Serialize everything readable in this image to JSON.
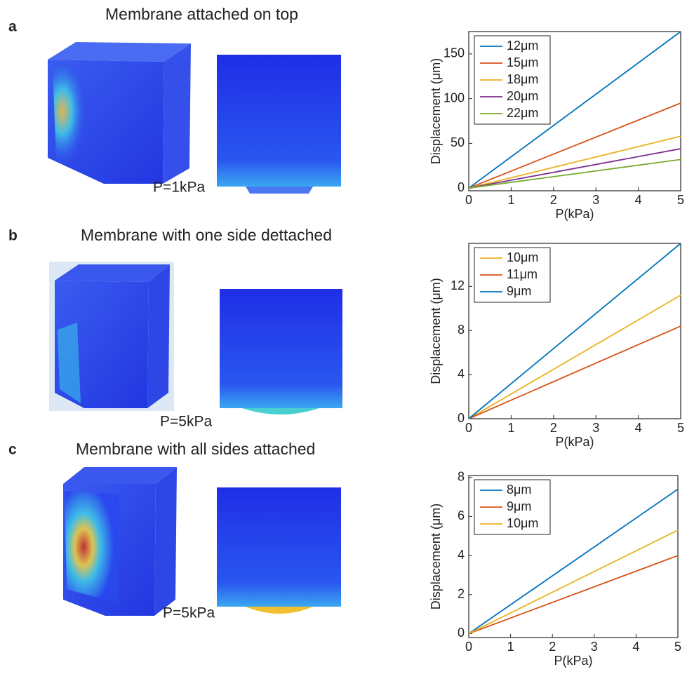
{
  "panels": [
    {
      "label": "a",
      "title": "Membrane attached on top",
      "pressure": "P=1kPa"
    },
    {
      "label": "b",
      "title": "Membrane with one side dettached",
      "pressure": "P=5kPa"
    },
    {
      "label": "c",
      "title": "Membrane with all sides attached",
      "pressure": "P=5kPa"
    }
  ],
  "chart_data": [
    {
      "type": "line",
      "xlabel": "P(kPa)",
      "ylabel": "Displacement (μm)",
      "x": [
        0,
        5
      ],
      "xlim": [
        0,
        5
      ],
      "ylim": [
        -3,
        175
      ],
      "xticks": [
        0,
        1,
        2,
        3,
        4,
        5
      ],
      "yticks": [
        0,
        50,
        100,
        150
      ],
      "legend": "upper left",
      "series": [
        {
          "name": "12μm",
          "color": "#0072BD",
          "values": [
            0,
            175
          ]
        },
        {
          "name": "15μm",
          "color": "#D95319",
          "values": [
            0,
            95
          ]
        },
        {
          "name": "18μm",
          "color": "#EDB120",
          "values": [
            0,
            58
          ]
        },
        {
          "name": "20μm",
          "color": "#7E2F8E",
          "values": [
            0,
            44
          ]
        },
        {
          "name": "22μm",
          "color": "#77AC30",
          "values": [
            0,
            32
          ]
        }
      ]
    },
    {
      "type": "line",
      "xlabel": "P(kPa)",
      "ylabel": "Displacement (μm)",
      "x": [
        0,
        5
      ],
      "xlim": [
        0,
        5
      ],
      "ylim": [
        0,
        15.9
      ],
      "xticks": [
        0,
        1,
        2,
        3,
        4,
        5
      ],
      "yticks": [
        0,
        4,
        8,
        12
      ],
      "legend": "upper left",
      "series": [
        {
          "name": "10μm",
          "color": "#EDB120",
          "values": [
            0,
            11.2
          ]
        },
        {
          "name": "11μm",
          "color": "#D95319",
          "values": [
            0,
            8.4
          ]
        },
        {
          "name": "9μm",
          "color": "#0072BD",
          "values": [
            0,
            15.9
          ]
        }
      ]
    },
    {
      "type": "line",
      "xlabel": "P(kPa)",
      "ylabel": "Displacement (μm)",
      "x": [
        0,
        5
      ],
      "xlim": [
        0,
        5
      ],
      "ylim": [
        -0.2,
        8.1
      ],
      "xticks": [
        0,
        1,
        2,
        3,
        4,
        5
      ],
      "yticks": [
        0,
        2,
        4,
        6,
        8
      ],
      "legend": "upper left",
      "series": [
        {
          "name": "8μm",
          "color": "#0072BD",
          "values": [
            0,
            7.4
          ]
        },
        {
          "name": "9μm",
          "color": "#D95319",
          "values": [
            0,
            4.0
          ]
        },
        {
          "name": "10μm",
          "color": "#EDB120",
          "values": [
            0,
            5.3
          ]
        }
      ]
    }
  ]
}
